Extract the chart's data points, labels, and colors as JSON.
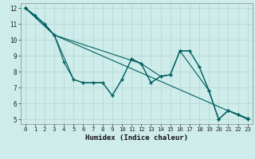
{
  "xlabel": "Humidex (Indice chaleur)",
  "background_color": "#cdecea",
  "grid_color": "#b8d8d4",
  "line_color": "#006060",
  "xlim": [
    -0.5,
    23.5
  ],
  "ylim": [
    4.7,
    12.3
  ],
  "xticks": [
    0,
    1,
    2,
    3,
    4,
    5,
    6,
    7,
    8,
    9,
    10,
    11,
    12,
    13,
    14,
    15,
    16,
    17,
    18,
    19,
    20,
    21,
    22,
    23
  ],
  "yticks": [
    5,
    6,
    7,
    8,
    9,
    10,
    11,
    12
  ],
  "lines": [
    {
      "x": [
        0,
        1,
        2,
        3,
        4,
        5,
        6,
        7,
        8,
        9,
        10,
        11,
        12,
        13,
        14,
        15,
        16,
        17,
        18,
        19,
        20,
        21,
        22,
        23
      ],
      "y": [
        12,
        11.55,
        11,
        10.3,
        8.6,
        7.5,
        7.3,
        7.3,
        7.3,
        6.5,
        7.5,
        8.8,
        8.5,
        7.3,
        7.7,
        7.8,
        9.3,
        9.3,
        8.3,
        6.8,
        5.0,
        5.55,
        5.3,
        5.05
      ]
    },
    {
      "x": [
        0,
        2,
        3,
        5,
        6,
        7,
        8,
        9,
        10,
        11,
        12,
        13,
        14,
        15,
        16,
        17,
        18,
        19,
        20,
        21,
        22,
        23
      ],
      "y": [
        12,
        11,
        10.3,
        7.5,
        7.3,
        7.3,
        7.3,
        6.5,
        7.5,
        8.8,
        8.5,
        7.3,
        7.7,
        7.8,
        9.3,
        9.3,
        8.3,
        6.8,
        5.0,
        5.55,
        5.3,
        5.05
      ]
    },
    {
      "x": [
        0,
        3,
        23
      ],
      "y": [
        12,
        10.3,
        5.0
      ]
    },
    {
      "x": [
        0,
        3,
        12,
        14,
        15,
        16,
        19,
        20,
        21,
        22,
        23
      ],
      "y": [
        12,
        10.3,
        8.5,
        7.7,
        7.8,
        9.3,
        6.8,
        5.0,
        5.55,
        5.3,
        5.05
      ]
    }
  ]
}
